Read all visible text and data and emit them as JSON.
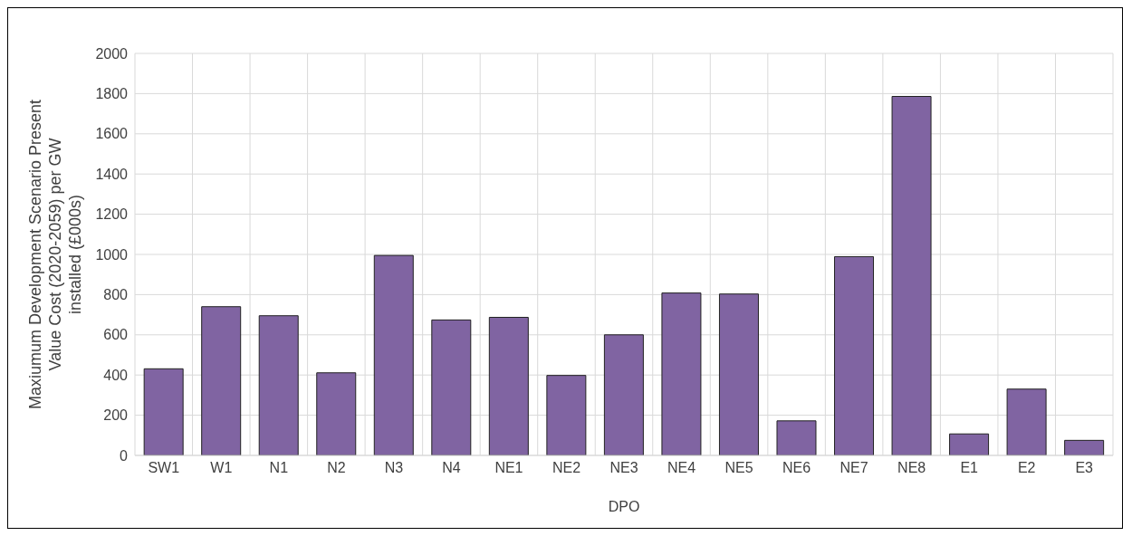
{
  "chart_data": {
    "type": "bar",
    "xlabel": "DPO",
    "ylabel": "Maxiumum Development Scenario Present Value Cost (2020-2059) per GW installed (£000s)",
    "categories": [
      "SW1",
      "W1",
      "N1",
      "N2",
      "N3",
      "N4",
      "NE1",
      "NE2",
      "NE3",
      "NE4",
      "NE5",
      "NE6",
      "NE7",
      "NE8",
      "E1",
      "E2",
      "E3"
    ],
    "values": [
      431,
      740,
      695,
      411,
      995,
      674,
      687,
      398,
      600,
      808,
      803,
      172,
      989,
      1786,
      107,
      330,
      75
    ],
    "color": "#8064a2",
    "ylim": [
      0,
      2000
    ],
    "yticks": [
      0,
      200,
      400,
      600,
      800,
      1000,
      1200,
      1400,
      1600,
      1800,
      2000
    ],
    "grid": true
  }
}
